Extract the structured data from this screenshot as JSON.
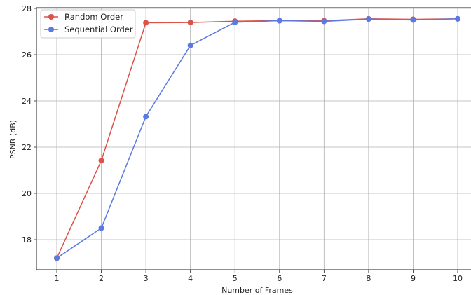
{
  "chart_data": {
    "type": "line",
    "title": "",
    "xlabel": "Number of Frames",
    "ylabel": "PSNR (dB)",
    "x": [
      1,
      2,
      3,
      4,
      5,
      6,
      7,
      8,
      9,
      10
    ],
    "xticks": [
      "1",
      "2",
      "3",
      "4",
      "5",
      "6",
      "7",
      "8",
      "9",
      "10"
    ],
    "yticks": [
      "18",
      "20",
      "22",
      "24",
      "26",
      "28"
    ],
    "ylim": [
      16.68,
      28.05
    ],
    "xlim": [
      0.55,
      10.3
    ],
    "grid": true,
    "legend_position": "upper left",
    "series": [
      {
        "name": "Random Order",
        "color": "#d9534a",
        "values": [
          17.2,
          21.42,
          27.38,
          27.39,
          27.45,
          27.47,
          27.47,
          27.55,
          27.53,
          27.55
        ]
      },
      {
        "name": "Sequential Order",
        "color": "#5b79e0",
        "values": [
          17.2,
          18.5,
          23.32,
          26.4,
          27.4,
          27.47,
          27.44,
          27.54,
          27.5,
          27.55
        ]
      }
    ]
  }
}
